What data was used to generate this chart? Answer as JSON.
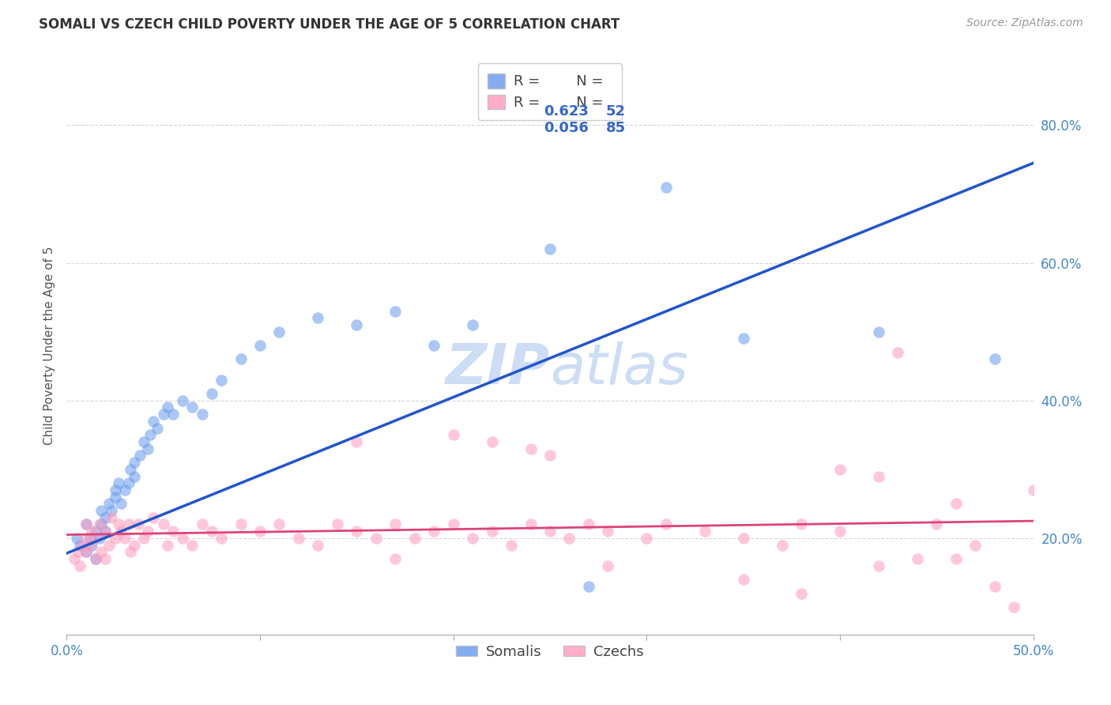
{
  "title": "SOMALI VS CZECH CHILD POVERTY UNDER THE AGE OF 5 CORRELATION CHART",
  "source": "Source: ZipAtlas.com",
  "ylabel": "Child Poverty Under the Age of 5",
  "xlim": [
    0.0,
    0.5
  ],
  "ylim": [
    0.06,
    0.9
  ],
  "xticks": [
    0.0,
    0.5
  ],
  "xtick_labels": [
    "0.0%",
    "50.0%"
  ],
  "yticks": [
    0.2,
    0.4,
    0.6,
    0.8
  ],
  "ytick_labels": [
    "20.0%",
    "40.0%",
    "60.0%",
    "80.0%"
  ],
  "somali_R": "0.623",
  "somali_N": "52",
  "czech_R": "0.056",
  "czech_N": "85",
  "somali_color": "#6699ee",
  "czech_color": "#ff99bb",
  "somali_line_color": "#2255cc",
  "czech_line_color": "#dd4477",
  "legend_num_color": "#3366cc",
  "watermark_color": "#ccddf5",
  "background_color": "#ffffff",
  "somali_x": [
    0.005,
    0.007,
    0.01,
    0.01,
    0.012,
    0.013,
    0.015,
    0.015,
    0.017,
    0.018,
    0.018,
    0.02,
    0.02,
    0.022,
    0.023,
    0.025,
    0.025,
    0.027,
    0.028,
    0.03,
    0.032,
    0.033,
    0.035,
    0.035,
    0.038,
    0.04,
    0.042,
    0.043,
    0.045,
    0.047,
    0.05,
    0.052,
    0.055,
    0.06,
    0.065,
    0.07,
    0.075,
    0.08,
    0.09,
    0.1,
    0.11,
    0.13,
    0.15,
    0.17,
    0.19,
    0.21,
    0.25,
    0.27,
    0.31,
    0.35,
    0.42,
    0.48
  ],
  "somali_y": [
    0.2,
    0.19,
    0.22,
    0.18,
    0.2,
    0.19,
    0.17,
    0.21,
    0.2,
    0.22,
    0.24,
    0.21,
    0.23,
    0.25,
    0.24,
    0.27,
    0.26,
    0.28,
    0.25,
    0.27,
    0.28,
    0.3,
    0.29,
    0.31,
    0.32,
    0.34,
    0.33,
    0.35,
    0.37,
    0.36,
    0.38,
    0.39,
    0.38,
    0.4,
    0.39,
    0.38,
    0.41,
    0.43,
    0.46,
    0.48,
    0.5,
    0.52,
    0.51,
    0.53,
    0.48,
    0.51,
    0.62,
    0.13,
    0.71,
    0.49,
    0.5,
    0.46
  ],
  "czech_x": [
    0.004,
    0.006,
    0.007,
    0.008,
    0.01,
    0.01,
    0.01,
    0.012,
    0.013,
    0.015,
    0.015,
    0.017,
    0.018,
    0.02,
    0.02,
    0.022,
    0.023,
    0.025,
    0.027,
    0.028,
    0.03,
    0.032,
    0.033,
    0.035,
    0.037,
    0.04,
    0.042,
    0.045,
    0.05,
    0.052,
    0.055,
    0.06,
    0.065,
    0.07,
    0.075,
    0.08,
    0.09,
    0.1,
    0.11,
    0.12,
    0.13,
    0.14,
    0.15,
    0.16,
    0.17,
    0.18,
    0.19,
    0.2,
    0.21,
    0.22,
    0.23,
    0.24,
    0.25,
    0.26,
    0.27,
    0.28,
    0.3,
    0.31,
    0.33,
    0.35,
    0.37,
    0.38,
    0.4,
    0.42,
    0.44,
    0.45,
    0.46,
    0.47,
    0.48,
    0.49,
    0.5,
    0.51,
    0.35,
    0.38,
    0.4,
    0.42,
    0.43,
    0.2,
    0.22,
    0.24,
    0.15,
    0.17,
    0.25,
    0.28,
    0.46
  ],
  "czech_y": [
    0.17,
    0.18,
    0.16,
    0.19,
    0.18,
    0.2,
    0.22,
    0.19,
    0.21,
    0.2,
    0.17,
    0.22,
    0.18,
    0.17,
    0.21,
    0.19,
    0.23,
    0.2,
    0.22,
    0.21,
    0.2,
    0.22,
    0.18,
    0.19,
    0.22,
    0.2,
    0.21,
    0.23,
    0.22,
    0.19,
    0.21,
    0.2,
    0.19,
    0.22,
    0.21,
    0.2,
    0.22,
    0.21,
    0.22,
    0.2,
    0.19,
    0.22,
    0.21,
    0.2,
    0.22,
    0.2,
    0.21,
    0.22,
    0.2,
    0.21,
    0.19,
    0.22,
    0.21,
    0.2,
    0.22,
    0.21,
    0.2,
    0.22,
    0.21,
    0.2,
    0.19,
    0.22,
    0.21,
    0.16,
    0.17,
    0.22,
    0.17,
    0.19,
    0.13,
    0.1,
    0.27,
    0.18,
    0.14,
    0.12,
    0.3,
    0.29,
    0.47,
    0.35,
    0.34,
    0.33,
    0.34,
    0.17,
    0.32,
    0.16,
    0.25
  ],
  "somali_line_x0": 0.0,
  "somali_line_y0": 0.178,
  "somali_line_x1": 0.5,
  "somali_line_y1": 0.745,
  "czech_line_x0": 0.0,
  "czech_line_y0": 0.205,
  "czech_line_x1": 0.5,
  "czech_line_y1": 0.225
}
